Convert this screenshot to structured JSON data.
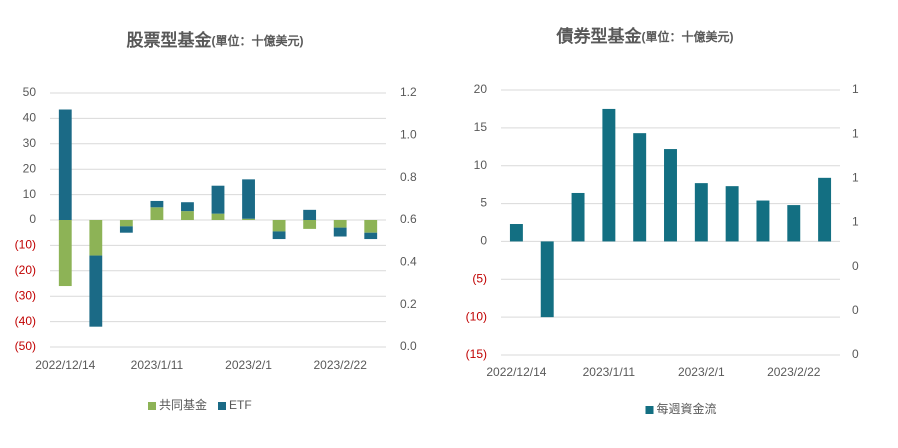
{
  "chart_data": [
    {
      "type": "stacked_bar",
      "title": "股票型基金",
      "subtitle": "(單位：十億美元)",
      "categories": [
        "2022/12/14",
        null,
        null,
        "2023/1/11",
        null,
        null,
        "2023/2/1",
        null,
        null,
        "2023/2/22",
        null
      ],
      "series": [
        {
          "name": "共同基金",
          "color": "#8db356",
          "values": [
            -26,
            -14,
            -2.5,
            5,
            3.5,
            2.5,
            0.5,
            -4.5,
            -3.5,
            -3,
            -5
          ]
        },
        {
          "name": "ETF",
          "color": "#1b6a86",
          "values": [
            43.5,
            -28,
            -2.5,
            2.5,
            3.5,
            11,
            15.5,
            -3,
            4,
            -3.5,
            -2.5
          ]
        }
      ],
      "ylim": [
        -50,
        50
      ],
      "yticks": [
        {
          "value": -50,
          "label": "(50)"
        },
        {
          "value": -40,
          "label": "(40)"
        },
        {
          "value": -30,
          "label": "(30)"
        },
        {
          "value": -20,
          "label": "(20)"
        },
        {
          "value": -10,
          "label": "(10)"
        },
        0,
        10,
        20,
        30,
        40,
        50
      ],
      "y2lim": [
        0,
        1.2
      ],
      "y2ticks": [
        {
          "value": 0,
          "label": "0.0"
        },
        0.2,
        0.4,
        0.6,
        0.8,
        {
          "value": 1,
          "label": "1.0"
        },
        1.2
      ],
      "negative_tick_color": "#c00000",
      "grid": true,
      "legend": "bottom"
    },
    {
      "type": "bar",
      "title": "債券型基金",
      "subtitle": "(單位：十億美元)",
      "categories": [
        "2022/12/14",
        null,
        null,
        "2023/1/11",
        null,
        null,
        "2023/2/1",
        null,
        null,
        "2023/2/22",
        null
      ],
      "series": [
        {
          "name": "每週資金流",
          "color": "#136f82",
          "values": [
            2.3,
            -10,
            6.4,
            17.5,
            14.3,
            12.2,
            7.7,
            7.3,
            5.4,
            4.8,
            8.4
          ]
        }
      ],
      "ylim": [
        -15,
        20
      ],
      "yticks": [
        {
          "value": -15,
          "label": "(15)"
        },
        {
          "value": -10,
          "label": "(10)"
        },
        {
          "value": -5,
          "label": "(5)"
        },
        0,
        5,
        10,
        15,
        20
      ],
      "y2lim": [
        0,
        1.2
      ],
      "y2ticks": [
        0,
        {
          "value": 0.2,
          "label": "0"
        },
        {
          "value": 0.4,
          "label": "0"
        },
        {
          "value": 0.6,
          "label": "1"
        },
        {
          "value": 0.8,
          "label": "1"
        },
        1,
        {
          "value": 1.2,
          "label": "1"
        }
      ],
      "negative_tick_color": "#c00000",
      "grid": true,
      "legend": "bottom"
    }
  ]
}
